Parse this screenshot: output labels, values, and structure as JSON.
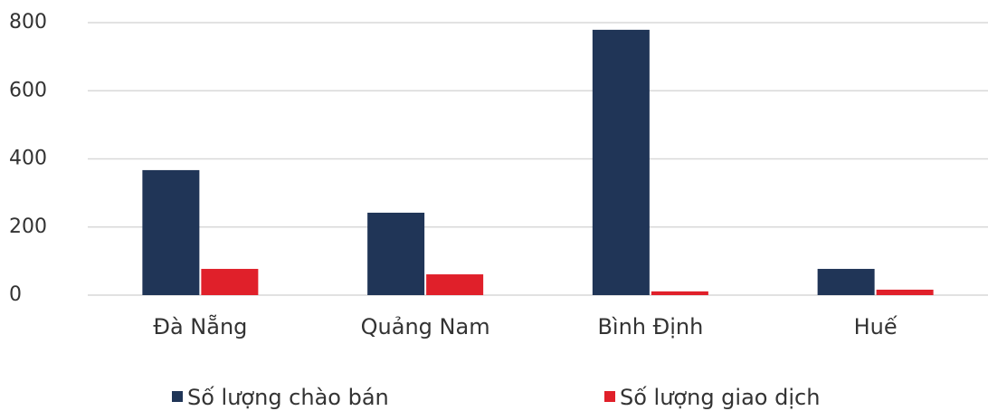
{
  "chart_data": {
    "type": "bar",
    "categories": [
      "Đà Nẵng",
      "Quảng Nam",
      "Bình Định",
      "Huế"
    ],
    "series": [
      {
        "name": "Số lượng chào bán",
        "color": "#203557",
        "values": [
          367,
          242,
          779,
          77
        ]
      },
      {
        "name": "Số lượng giao dịch",
        "color": "#e0202a",
        "values": [
          77,
          61,
          11,
          16
        ]
      }
    ],
    "ylim": [
      0,
      800
    ],
    "yticks": [
      0,
      200,
      400,
      600,
      800
    ],
    "grid": true,
    "legend": "bottom"
  }
}
